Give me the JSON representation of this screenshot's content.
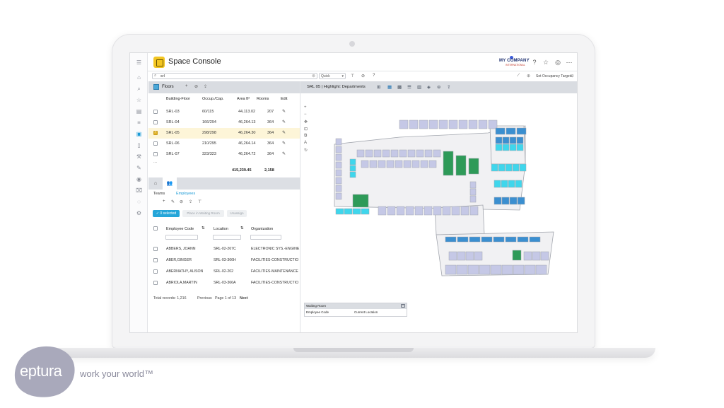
{
  "app": {
    "title": "Space Console",
    "brand_name": "MY COMPANY",
    "brand_sub": "INTERNATIONAL"
  },
  "search": {
    "value": "srl",
    "mode": "Quick",
    "occupancy_link": "Set Occupancy Targets"
  },
  "floors": {
    "title": "Floors",
    "columns": [
      "Building-Floor",
      "Occup./Cap.",
      "Area ft²",
      "Rooms",
      "Edit"
    ],
    "rows": [
      {
        "floor": "SRL-03",
        "occ": "60/115",
        "area": "44,113.02",
        "rooms": "207",
        "checked": false
      },
      {
        "floor": "SRL-04",
        "occ": "166/294",
        "area": "46,264.13",
        "rooms": "364",
        "checked": false
      },
      {
        "floor": "SRL-05",
        "occ": "298/298",
        "area": "46,264.30",
        "rooms": "364",
        "checked": true
      },
      {
        "floor": "SRL-06",
        "occ": "210/295",
        "area": "46,264.14",
        "rooms": "364",
        "checked": false
      },
      {
        "floor": "SRL-07",
        "occ": "323/323",
        "area": "46,264.72",
        "rooms": "364",
        "checked": false
      }
    ],
    "more": "...",
    "total_area": "415,239.45",
    "total_rooms": "2,158"
  },
  "people": {
    "subtabs": [
      "Teams",
      "Employees"
    ],
    "selected_label": "0 selected",
    "waiting_room_button": "Place in Waiting Room",
    "unassign_button": "Unassign",
    "columns": [
      "Employee Code",
      "Location",
      "Organization"
    ],
    "rows": [
      {
        "name": "ABBERS, JOANN",
        "location": "SRL-02-267C",
        "org": "ELECTRONIC SYS.-ENGINE"
      },
      {
        "name": "ABER,GINGER",
        "location": "SRL-03-366H",
        "org": "FACILITIES-CONSTRUCTIO"
      },
      {
        "name": "ABERNATHY, ALISON",
        "location": "SRL-02-202",
        "org": "FACILITIES-MAINTENANCE"
      },
      {
        "name": "ABRIOLA,MARTIN",
        "location": "SRL-03-366A",
        "org": "FACILITIES-CONSTRUCTIO"
      }
    ],
    "total_records": "Total records: 1,216",
    "previous": "Previous",
    "page_info": "Page 1 of 13",
    "next": "Next"
  },
  "plan": {
    "title": "SRL 05 | Highlight: Departments",
    "colors": {
      "lavender": "#c5c8e6",
      "green": "#2e9a58",
      "cyan": "#3fd6ec",
      "blue": "#3b8fd0",
      "wall": "#a2a6ae",
      "floor": "#f1f1f3"
    }
  },
  "waiting_room": {
    "title": "Waiting Room",
    "col1": "Employee Code",
    "col2": "Current Location"
  },
  "brand_footer": {
    "logo_text": "eptura",
    "tagline": "work your world™"
  }
}
